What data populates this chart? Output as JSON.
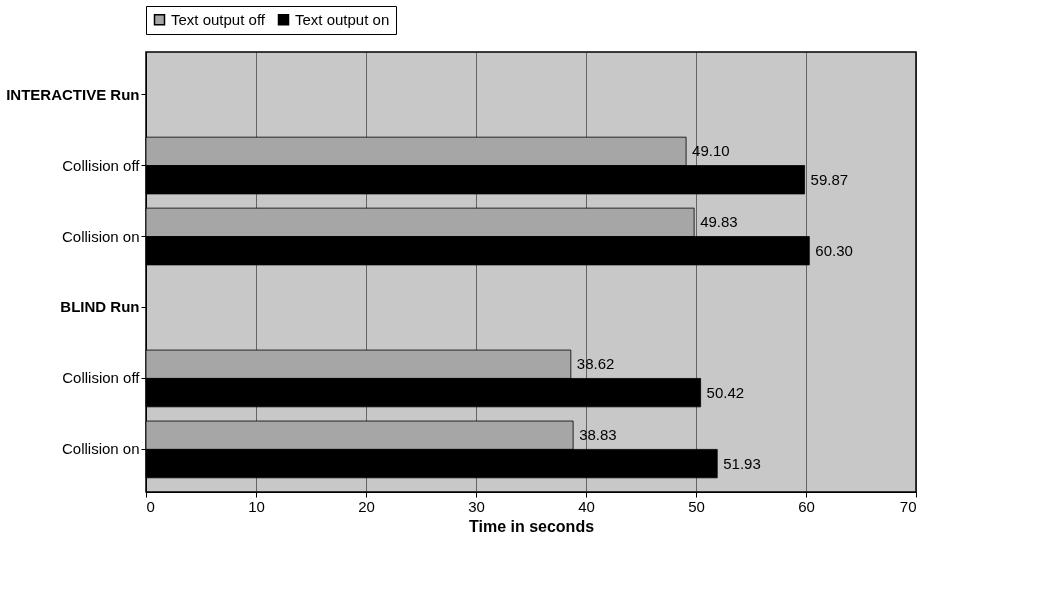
{
  "chart_data": {
    "type": "bar",
    "orientation": "horizontal",
    "xlabel": "Time in seconds",
    "categories": [
      "INTERACTIVE Run",
      "Collision off",
      "Collision on",
      "BLIND Run",
      "Collision off",
      "Collision on"
    ],
    "series": [
      {
        "name": "Text output off",
        "color": "#a6a6a6",
        "values": [
          null,
          49.1,
          49.83,
          null,
          38.62,
          38.83
        ],
        "value_labels": [
          null,
          "49.10",
          "49.83",
          null,
          "38.62",
          "38.83"
        ]
      },
      {
        "name": "Text output on",
        "color": "#000000",
        "values": [
          null,
          59.87,
          60.3,
          null,
          50.42,
          51.93
        ],
        "value_labels": [
          null,
          "59.87",
          "60.30",
          null,
          "50.42",
          "51.93"
        ]
      }
    ],
    "xlim": [
      0,
      70
    ],
    "xticks": [
      0,
      10,
      20,
      30,
      40,
      50,
      60,
      70
    ],
    "grid": "x",
    "legend": "top"
  }
}
